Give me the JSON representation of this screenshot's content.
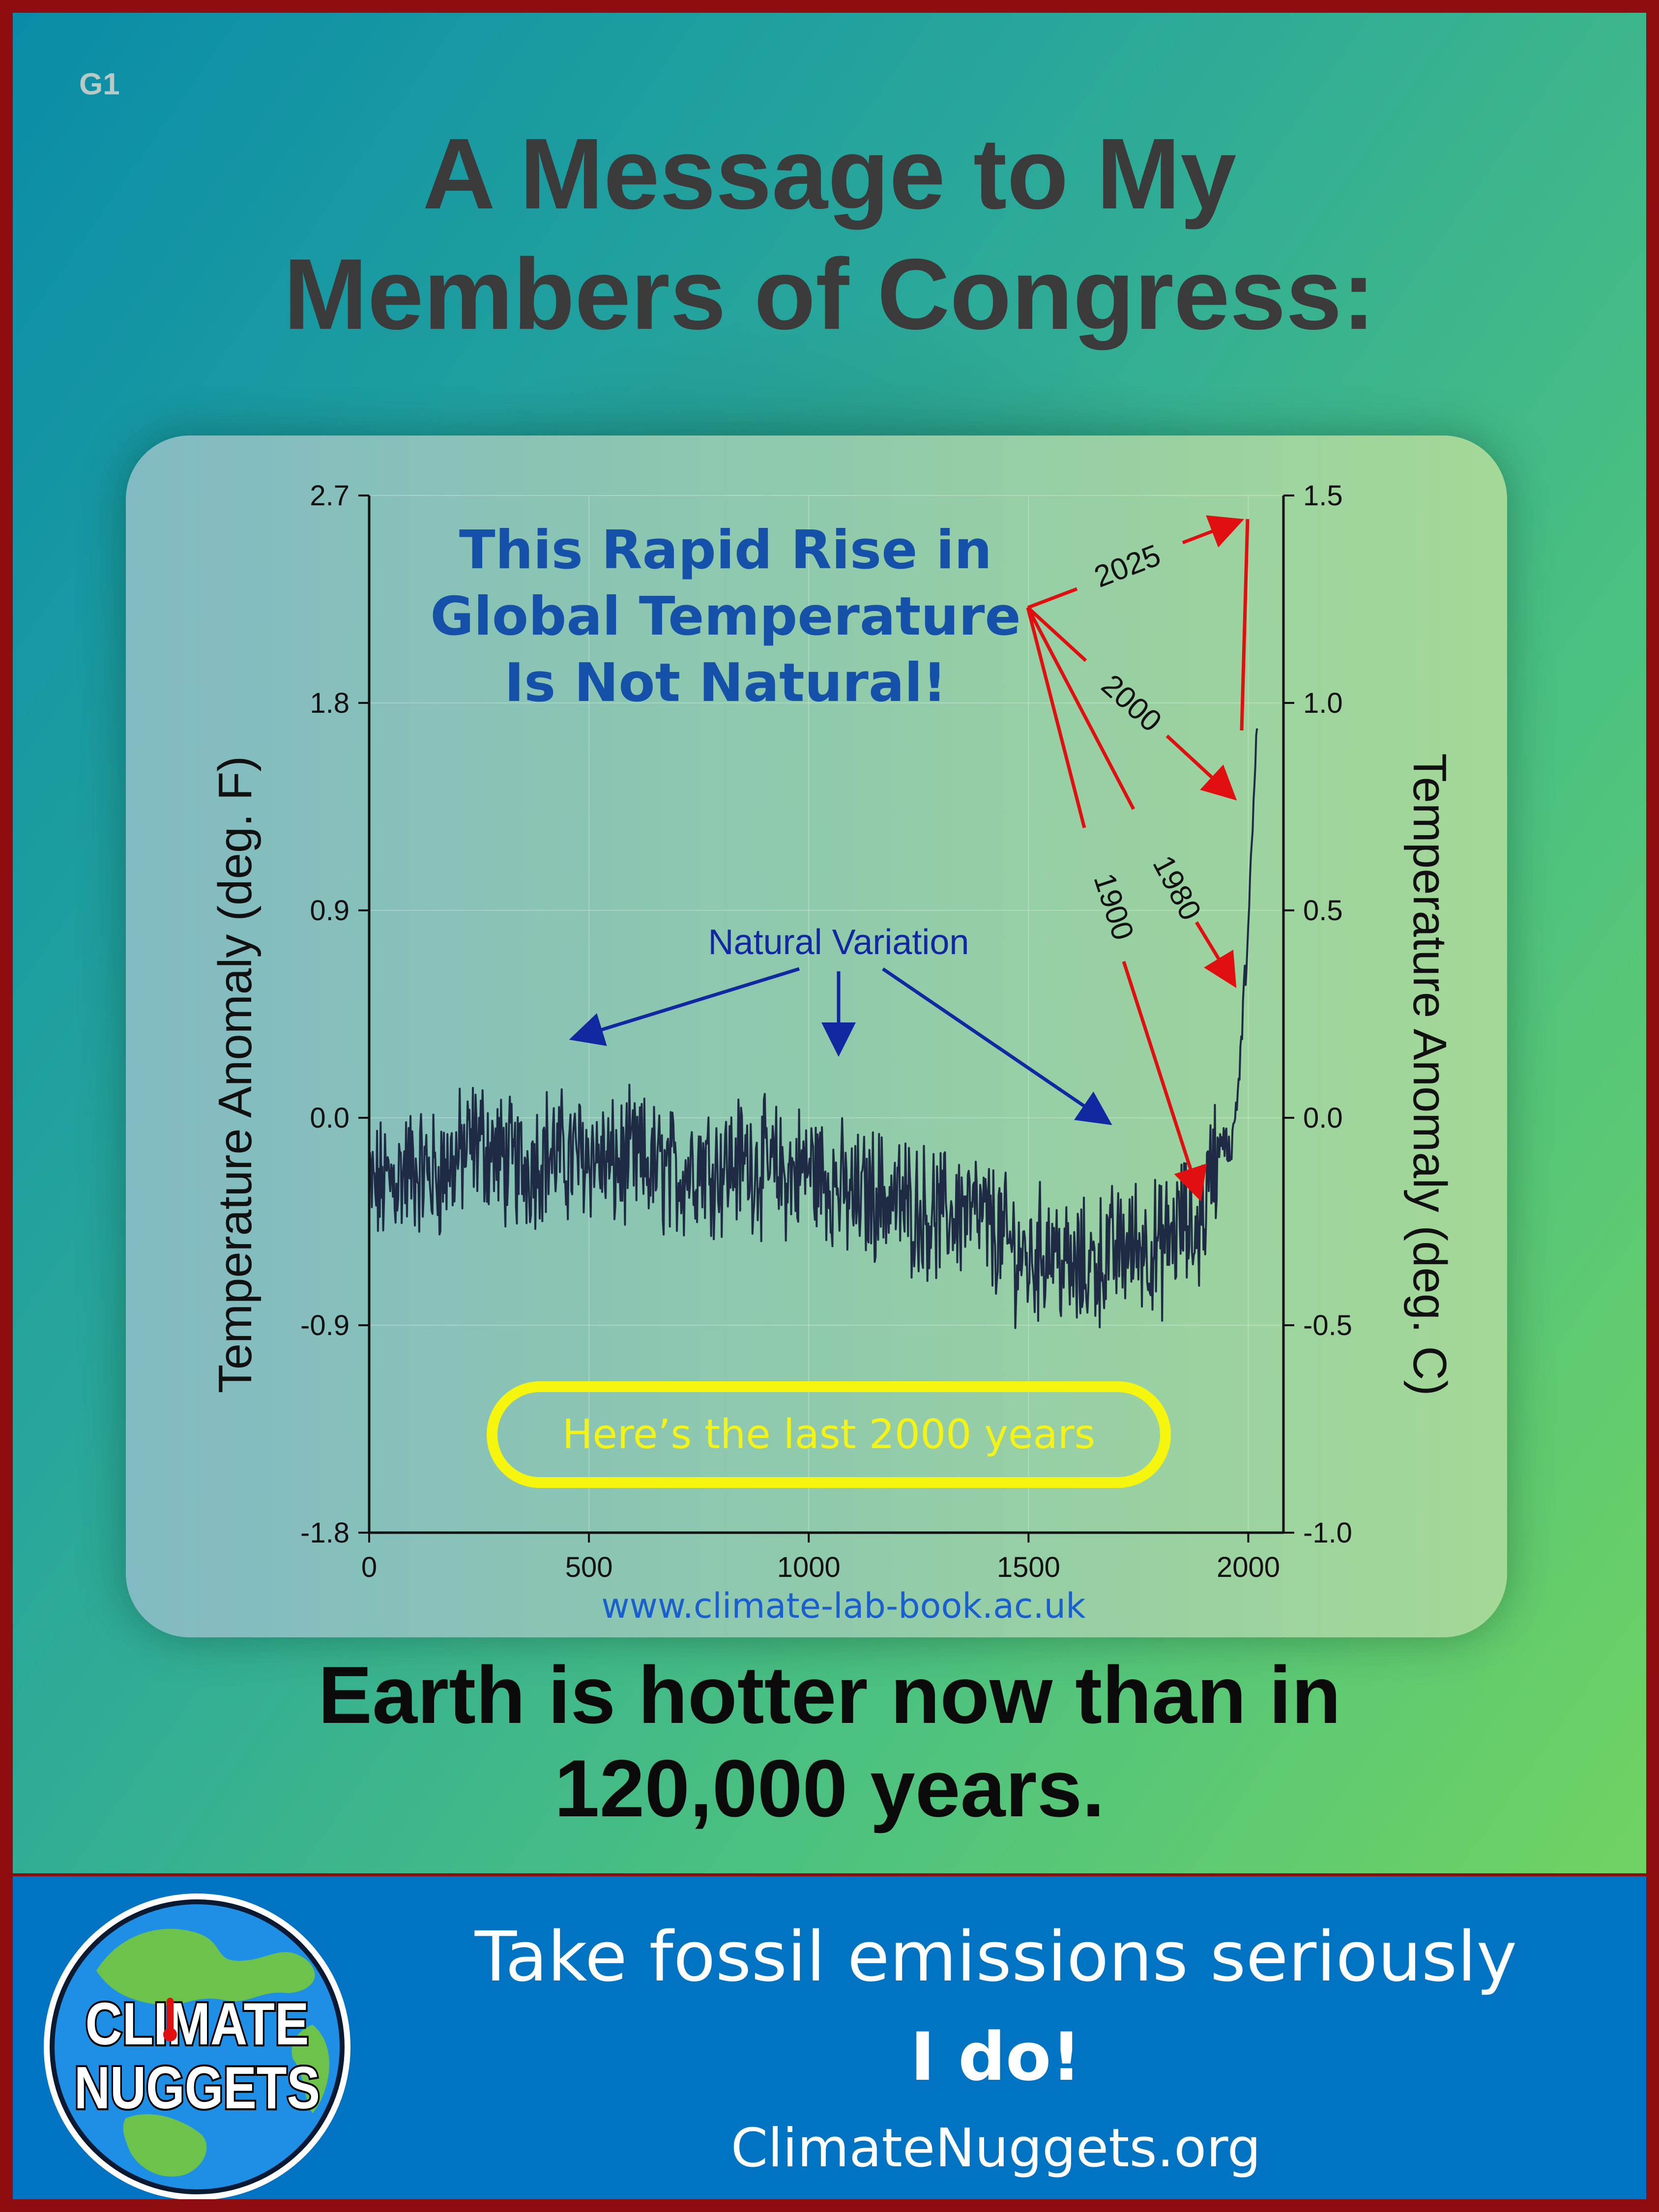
{
  "tag": "G1",
  "title": {
    "line1": "A Message to My",
    "line2": "Members of Congress:"
  },
  "tagline": {
    "line1": "Earth is hotter now than in",
    "line2": "120,000 years."
  },
  "footer": {
    "line1": "Take fossil emissions seriously",
    "line2": "I do!",
    "line3": "ClimateNuggets.org",
    "logo_text1": "CLIMATE",
    "logo_text2": "NUGGETS"
  },
  "colors": {
    "border": "#8e0d10",
    "footer_bg": "#0074c3",
    "headline": "#1551a8",
    "natural_arrows": "#1228a0",
    "red_arrows": "#e01010",
    "series_line": "#1f2a45",
    "pill": "#f5f50e"
  },
  "chart_data": {
    "type": "line",
    "headline": [
      "This Rapid Rise in",
      "Global Temperature",
      "Is Not Natural!"
    ],
    "ylabel_left": "Temperature Anomaly (deg. F)",
    "ylabel_right": "Temperature Anomaly (deg. C)",
    "xlim": [
      0,
      2080
    ],
    "x_ticks": [
      0,
      500,
      1000,
      1500,
      2000
    ],
    "ylim_left": [
      -1.8,
      2.7
    ],
    "yticks_left": [
      "2.7",
      "1.8",
      "0.9",
      "0.0",
      "-0.9",
      "-1.8"
    ],
    "ylim_right": [
      -1.0,
      1.5
    ],
    "yticks_right": [
      "1.5",
      "1.0",
      "0.5",
      "0.0",
      "-0.5",
      "-1.0"
    ],
    "series": [
      {
        "x": [
          0,
          50,
          100,
          150,
          200,
          250,
          300,
          350,
          400,
          450,
          500,
          550,
          600,
          650,
          700,
          750,
          800,
          850,
          900,
          950,
          1000,
          1050,
          1100,
          1150,
          1200,
          1250,
          1300,
          1350,
          1400,
          1450,
          1500,
          1550,
          1600,
          1650,
          1700,
          1750,
          1800,
          1850,
          1880,
          1900,
          1920,
          1940,
          1960,
          1980,
          1990,
          2000,
          2010,
          2020
        ],
        "y": [
          -0.18,
          -0.15,
          -0.12,
          -0.14,
          -0.1,
          -0.05,
          -0.1,
          -0.12,
          -0.08,
          -0.1,
          -0.08,
          -0.12,
          -0.1,
          -0.12,
          -0.14,
          -0.1,
          -0.12,
          -0.1,
          -0.12,
          -0.14,
          -0.12,
          -0.15,
          -0.2,
          -0.18,
          -0.2,
          -0.22,
          -0.24,
          -0.22,
          -0.25,
          -0.3,
          -0.35,
          -0.3,
          -0.38,
          -0.35,
          -0.32,
          -0.3,
          -0.32,
          -0.25,
          -0.28,
          -0.22,
          -0.1,
          -0.05,
          -0.08,
          0.1,
          0.3,
          0.45,
          0.7,
          0.95
        ]
      }
    ],
    "annotations": {
      "natural": "Natural Variation",
      "years": [
        "2025",
        "2000",
        "1980",
        "1900"
      ],
      "last_2000": "Here’s the last 2000 years",
      "source": "www.climate-lab-book.ac.uk"
    },
    "grid": true
  }
}
